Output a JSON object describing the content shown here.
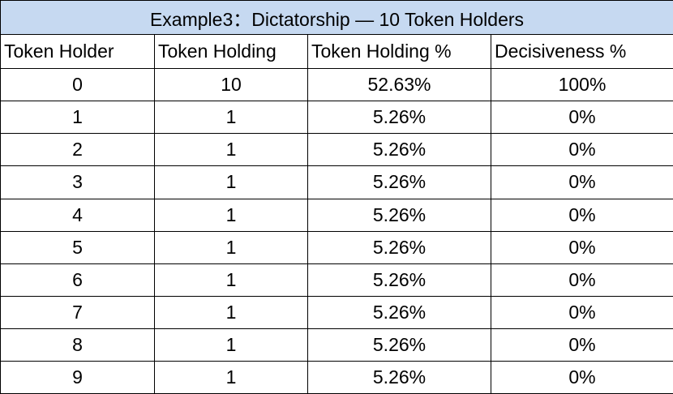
{
  "table": {
    "title": "Example3：Dictatorship — 10 Token Holders",
    "columns": [
      "Token Holder",
      "Token Holding",
      "Token Holding %",
      "Decisiveness %"
    ],
    "rows": [
      [
        "0",
        "10",
        "52.63%",
        "100%"
      ],
      [
        "1",
        "1",
        "5.26%",
        "0%"
      ],
      [
        "2",
        "1",
        "5.26%",
        "0%"
      ],
      [
        "3",
        "1",
        "5.26%",
        "0%"
      ],
      [
        "4",
        "1",
        "5.26%",
        "0%"
      ],
      [
        "5",
        "1",
        "5.26%",
        "0%"
      ],
      [
        "6",
        "1",
        "5.26%",
        "0%"
      ],
      [
        "7",
        "1",
        "5.26%",
        "0%"
      ],
      [
        "8",
        "1",
        "5.26%",
        "0%"
      ],
      [
        "9",
        "1",
        "5.26%",
        "0%"
      ]
    ]
  }
}
